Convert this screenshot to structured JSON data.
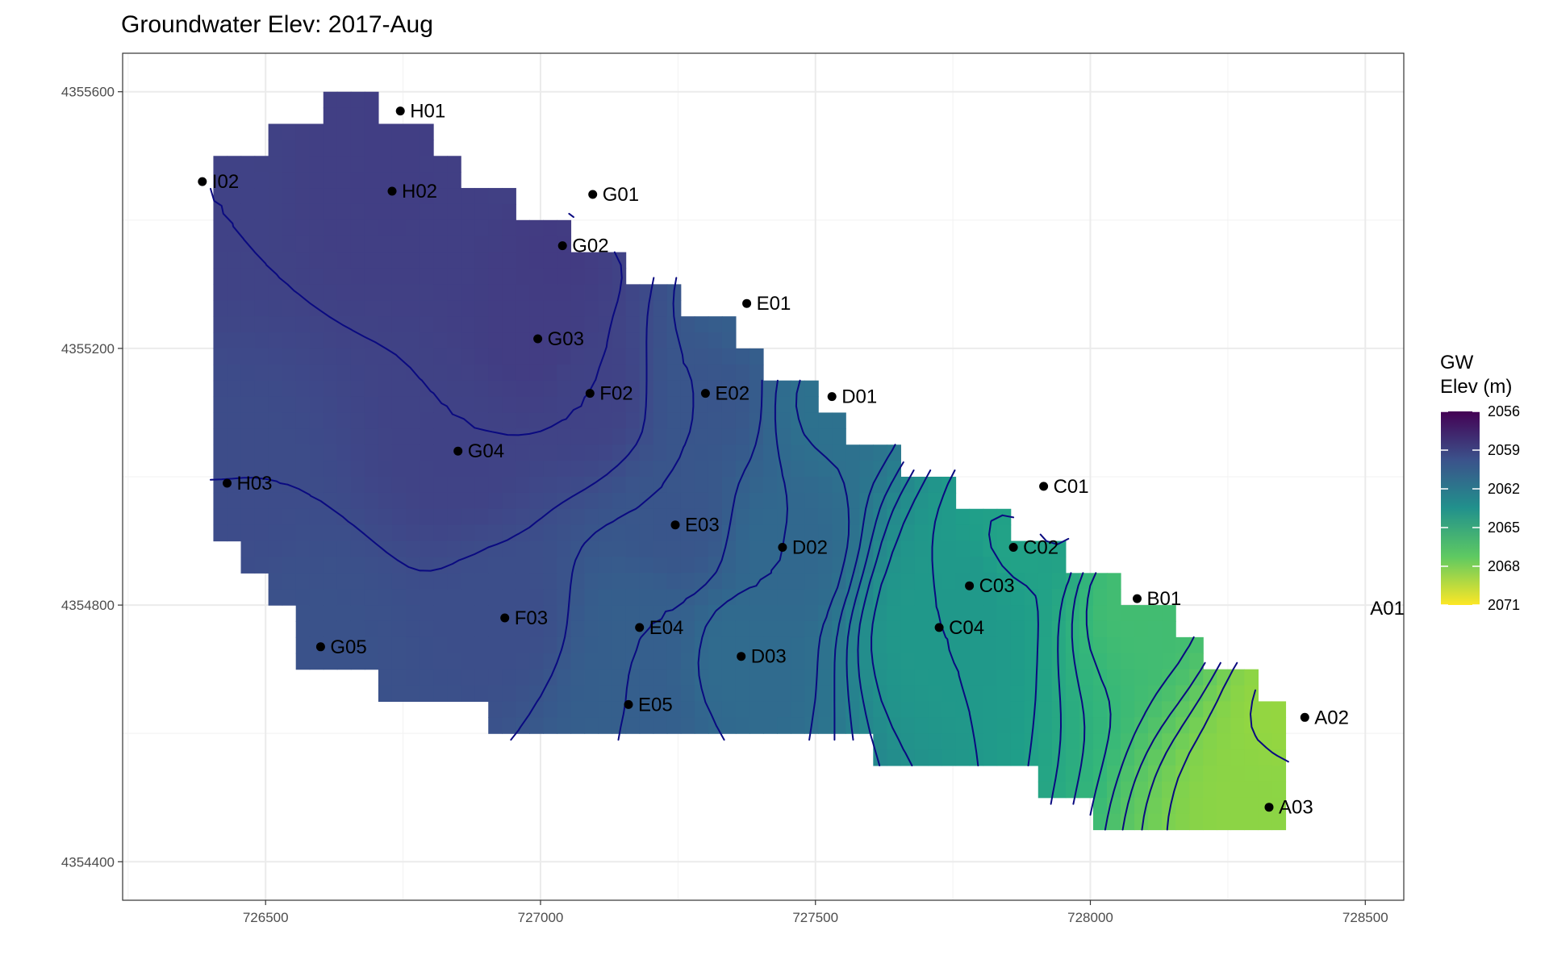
{
  "chart_data": {
    "type": "heatmap",
    "title": "Groundwater Elev: 2017-Aug",
    "xlabel": "",
    "ylabel": "",
    "xlim": [
      726240,
      728570
    ],
    "ylim": [
      4354340,
      4355660
    ],
    "x_ticks": [
      726500,
      727000,
      727500,
      728000,
      728500
    ],
    "x_tick_labels": [
      "726500",
      "727000",
      "727500",
      "728000",
      "728500"
    ],
    "y_ticks": [
      4354400,
      4354800,
      4355200,
      4355600
    ],
    "y_tick_labels": [
      "4354400",
      "4354800",
      "4355200",
      "4355600"
    ],
    "grid": true,
    "legend": {
      "title": "GW\nElev (m)",
      "placement": "right",
      "min": 2056,
      "max": 2071,
      "ticks": [
        2056,
        2059,
        2062,
        2065,
        2068,
        2071
      ],
      "tick_labels": [
        "2056",
        "2059",
        "2062",
        "2065",
        "2068",
        "2071"
      ],
      "colormap": "viridis-reversed"
    },
    "colors": {
      "contour": "#0a0a80",
      "station_point": "#000000",
      "panel_border": "#333333",
      "grid": "#ebebeb",
      "background": "#ffffff"
    },
    "stations": [
      {
        "name": "H01",
        "x": 726745,
        "y": 4355570,
        "gw": 2058.8
      },
      {
        "name": "I02",
        "x": 726385,
        "y": 4355460,
        "gw": 2059.0
      },
      {
        "name": "H02",
        "x": 726730,
        "y": 4355445,
        "gw": 2058.8
      },
      {
        "name": "G01",
        "x": 727095,
        "y": 4355440,
        "gw": 2059.4
      },
      {
        "name": "G02",
        "x": 727040,
        "y": 4355360,
        "gw": 2058.6
      },
      {
        "name": "E01",
        "x": 727375,
        "y": 4355270,
        "gw": 2060.5
      },
      {
        "name": "G03",
        "x": 726995,
        "y": 4355215,
        "gw": 2058.7
      },
      {
        "name": "D01",
        "x": 727530,
        "y": 4355125,
        "gw": 2061.6
      },
      {
        "name": "F02",
        "x": 727090,
        "y": 4355130,
        "gw": 2059.0
      },
      {
        "name": "E02",
        "x": 727300,
        "y": 4355130,
        "gw": 2060.0
      },
      {
        "name": "G04",
        "x": 726850,
        "y": 4355040,
        "gw": 2059.0
      },
      {
        "name": "H03",
        "x": 726430,
        "y": 4354990,
        "gw": 2059.5
      },
      {
        "name": "C01",
        "x": 727915,
        "y": 4354985,
        "gw": 2064.2
      },
      {
        "name": "E03",
        "x": 727245,
        "y": 4354925,
        "gw": 2060.0
      },
      {
        "name": "C02",
        "x": 727860,
        "y": 4354890,
        "gw": 2064.6
      },
      {
        "name": "D02",
        "x": 727440,
        "y": 4354890,
        "gw": 2061.0
      },
      {
        "name": "C03",
        "x": 727780,
        "y": 4354830,
        "gw": 2064.0
      },
      {
        "name": "B01",
        "x": 728085,
        "y": 4354810,
        "gw": 2066.4
      },
      {
        "name": "F03",
        "x": 726935,
        "y": 4354780,
        "gw": 2059.6
      },
      {
        "name": "E04",
        "x": 727180,
        "y": 4354765,
        "gw": 2060.5
      },
      {
        "name": "C04",
        "x": 727725,
        "y": 4354765,
        "gw": 2064.0
      },
      {
        "name": "G05",
        "x": 726600,
        "y": 4354735,
        "gw": 2059.8
      },
      {
        "name": "D03",
        "x": 727365,
        "y": 4354720,
        "gw": 2061.2
      },
      {
        "name": "E05",
        "x": 727160,
        "y": 4354645,
        "gw": 2060.5
      },
      {
        "name": "A02",
        "x": 728390,
        "y": 4354625,
        "gw": 2068.6
      },
      {
        "name": "A03",
        "x": 728325,
        "y": 4354485,
        "gw": 2068.4
      }
    ],
    "labels_without_point": [
      {
        "name": "A01",
        "x": 728540,
        "y": 4354795
      }
    ]
  }
}
